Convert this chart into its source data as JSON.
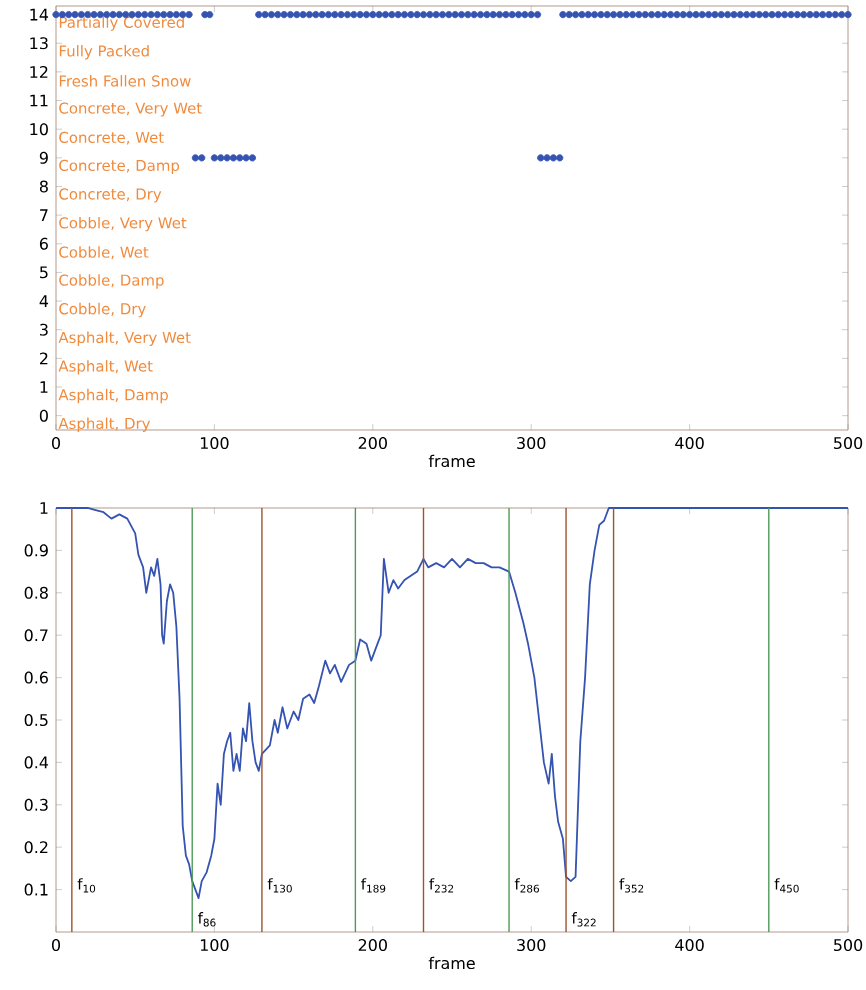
{
  "chart_data": [
    {
      "type": "scatter",
      "xlabel": "frame",
      "marker": "circle",
      "color": "#3553b0",
      "x": [
        0,
        4,
        8,
        12,
        16,
        20,
        24,
        28,
        32,
        36,
        40,
        44,
        48,
        52,
        56,
        60,
        64,
        68,
        72,
        76,
        80,
        84,
        88,
        92,
        94,
        97,
        100,
        104,
        108,
        112,
        116,
        120,
        124,
        128,
        132,
        136,
        140,
        144,
        148,
        152,
        156,
        160,
        164,
        168,
        172,
        176,
        180,
        184,
        188,
        192,
        196,
        200,
        204,
        208,
        212,
        216,
        220,
        224,
        228,
        232,
        236,
        240,
        244,
        248,
        252,
        256,
        260,
        264,
        268,
        272,
        276,
        280,
        284,
        288,
        292,
        296,
        300,
        304,
        306,
        310,
        314,
        318,
        320,
        324,
        328,
        332,
        336,
        340,
        344,
        348,
        352,
        356,
        360,
        364,
        368,
        372,
        376,
        380,
        384,
        388,
        392,
        396,
        400,
        404,
        408,
        412,
        416,
        420,
        424,
        428,
        432,
        436,
        440,
        444,
        448,
        452,
        456,
        460,
        464,
        468,
        472,
        476,
        480,
        484,
        488,
        492,
        496,
        500
      ],
      "values": [
        14,
        14,
        14,
        14,
        14,
        14,
        14,
        14,
        14,
        14,
        14,
        14,
        14,
        14,
        14,
        14,
        14,
        14,
        14,
        14,
        14,
        14,
        9,
        9,
        14,
        14,
        9,
        9,
        9,
        9,
        9,
        9,
        9,
        14,
        14,
        14,
        14,
        14,
        14,
        14,
        14,
        14,
        14,
        14,
        14,
        14,
        14,
        14,
        14,
        14,
        14,
        14,
        14,
        14,
        14,
        14,
        14,
        14,
        14,
        14,
        14,
        14,
        14,
        14,
        14,
        14,
        14,
        14,
        14,
        14,
        14,
        14,
        14,
        14,
        14,
        14,
        14,
        14,
        9,
        9,
        9,
        9,
        14,
        14,
        14,
        14,
        14,
        14,
        14,
        14,
        14,
        14,
        14,
        14,
        14,
        14,
        14,
        14,
        14,
        14,
        14,
        14,
        14,
        14,
        14,
        14,
        14,
        14,
        14,
        14,
        14,
        14,
        14,
        14,
        14,
        14,
        14,
        14,
        14,
        14,
        14,
        14,
        14,
        14,
        14,
        14,
        14,
        14
      ],
      "xlim": [
        0,
        500
      ],
      "ylim": [
        -0.5,
        14.3
      ],
      "xticks": [
        0,
        100,
        200,
        300,
        400,
        500
      ],
      "yticks": [
        0,
        1,
        2,
        3,
        4,
        5,
        6,
        7,
        8,
        9,
        10,
        11,
        12,
        13,
        14
      ],
      "annotations": [
        "Asphalt, Dry",
        "Asphalt, Damp",
        "Asphalt, Wet",
        "Asphalt, Very Wet",
        "Cobble, Dry",
        "Cobble, Damp",
        "Cobble, Wet",
        "Cobble, Very Wet",
        "Concrete, Dry",
        "Concrete, Damp",
        "Concrete, Wet",
        "Concrete, Very Wet",
        "Fresh Fallen Snow",
        "Fully Packed",
        "Partially Covered"
      ]
    },
    {
      "type": "line",
      "xlabel": "frame",
      "line_style": "solid",
      "series": [
        {
          "color": "#3553b0",
          "x": [
            0,
            5,
            10,
            15,
            20,
            25,
            30,
            35,
            40,
            45,
            50,
            52,
            55,
            57,
            60,
            62,
            64,
            66,
            67,
            68,
            70,
            72,
            74,
            76,
            78,
            80,
            82,
            84,
            86,
            88,
            90,
            92,
            95,
            98,
            100,
            102,
            104,
            106,
            108,
            110,
            112,
            114,
            116,
            118,
            120,
            122,
            124,
            126,
            128,
            130,
            135,
            138,
            140,
            143,
            146,
            150,
            153,
            156,
            160,
            163,
            166,
            170,
            173,
            176,
            180,
            185,
            189,
            192,
            196,
            199,
            203,
            205,
            207,
            210,
            213,
            216,
            220,
            224,
            228,
            232,
            235,
            240,
            245,
            250,
            255,
            260,
            265,
            270,
            275,
            280,
            286,
            290,
            295,
            298,
            302,
            305,
            308,
            311,
            313,
            315,
            317,
            320,
            322,
            325,
            328,
            331,
            334,
            337,
            340,
            343,
            346,
            349,
            352,
            360,
            400,
            450,
            500
          ],
          "values": [
            1,
            1,
            1,
            1,
            1,
            0.995,
            0.99,
            0.975,
            0.985,
            0.975,
            0.94,
            0.89,
            0.86,
            0.8,
            0.86,
            0.84,
            0.88,
            0.82,
            0.7,
            0.68,
            0.78,
            0.82,
            0.8,
            0.72,
            0.55,
            0.25,
            0.18,
            0.16,
            0.12,
            0.1,
            0.08,
            0.12,
            0.14,
            0.18,
            0.22,
            0.35,
            0.3,
            0.42,
            0.45,
            0.47,
            0.38,
            0.42,
            0.38,
            0.48,
            0.45,
            0.54,
            0.45,
            0.4,
            0.38,
            0.42,
            0.44,
            0.5,
            0.47,
            0.53,
            0.48,
            0.52,
            0.5,
            0.55,
            0.56,
            0.54,
            0.58,
            0.64,
            0.61,
            0.63,
            0.59,
            0.63,
            0.64,
            0.69,
            0.68,
            0.64,
            0.68,
            0.7,
            0.88,
            0.8,
            0.83,
            0.81,
            0.83,
            0.84,
            0.85,
            0.88,
            0.86,
            0.87,
            0.86,
            0.88,
            0.86,
            0.88,
            0.87,
            0.87,
            0.86,
            0.86,
            0.85,
            0.8,
            0.73,
            0.68,
            0.6,
            0.5,
            0.4,
            0.35,
            0.42,
            0.32,
            0.26,
            0.22,
            0.13,
            0.12,
            0.13,
            0.45,
            0.6,
            0.82,
            0.9,
            0.96,
            0.97,
            1,
            1,
            1,
            1,
            1,
            1
          ]
        }
      ],
      "xlim": [
        0,
        500
      ],
      "ylim": [
        0,
        1
      ],
      "xticks": [
        0,
        100,
        200,
        300,
        400,
        500
      ],
      "yticks": [
        0.1,
        0.2,
        0.3,
        0.4,
        0.5,
        0.6,
        0.7,
        0.8,
        0.9,
        1
      ],
      "ref_lines": [
        {
          "axis": "x",
          "value": 10,
          "label": "f$_{10}$",
          "color": "#a0522d"
        },
        {
          "axis": "x",
          "value": 86,
          "label": "f$_{86}$",
          "color": "#4f9a5a"
        },
        {
          "axis": "x",
          "value": 130,
          "label": "f$_{130}$",
          "color": "#a0522d"
        },
        {
          "axis": "x",
          "value": 189,
          "label": "f$_{189}$",
          "color": "#4f9a5a"
        },
        {
          "axis": "x",
          "value": 232,
          "label": "f$_{232}$",
          "color": "#a0522d"
        },
        {
          "axis": "x",
          "value": 286,
          "label": "f$_{286}$",
          "color": "#4f9a5a"
        },
        {
          "axis": "x",
          "value": 322,
          "label": "f$_{322}$",
          "color": "#a0522d"
        },
        {
          "axis": "x",
          "value": 352,
          "label": "f$_{352}$",
          "color": "#a0522d"
        },
        {
          "axis": "x",
          "value": 450,
          "label": "f$_{450}$",
          "color": "#4f9a5a"
        }
      ]
    }
  ]
}
